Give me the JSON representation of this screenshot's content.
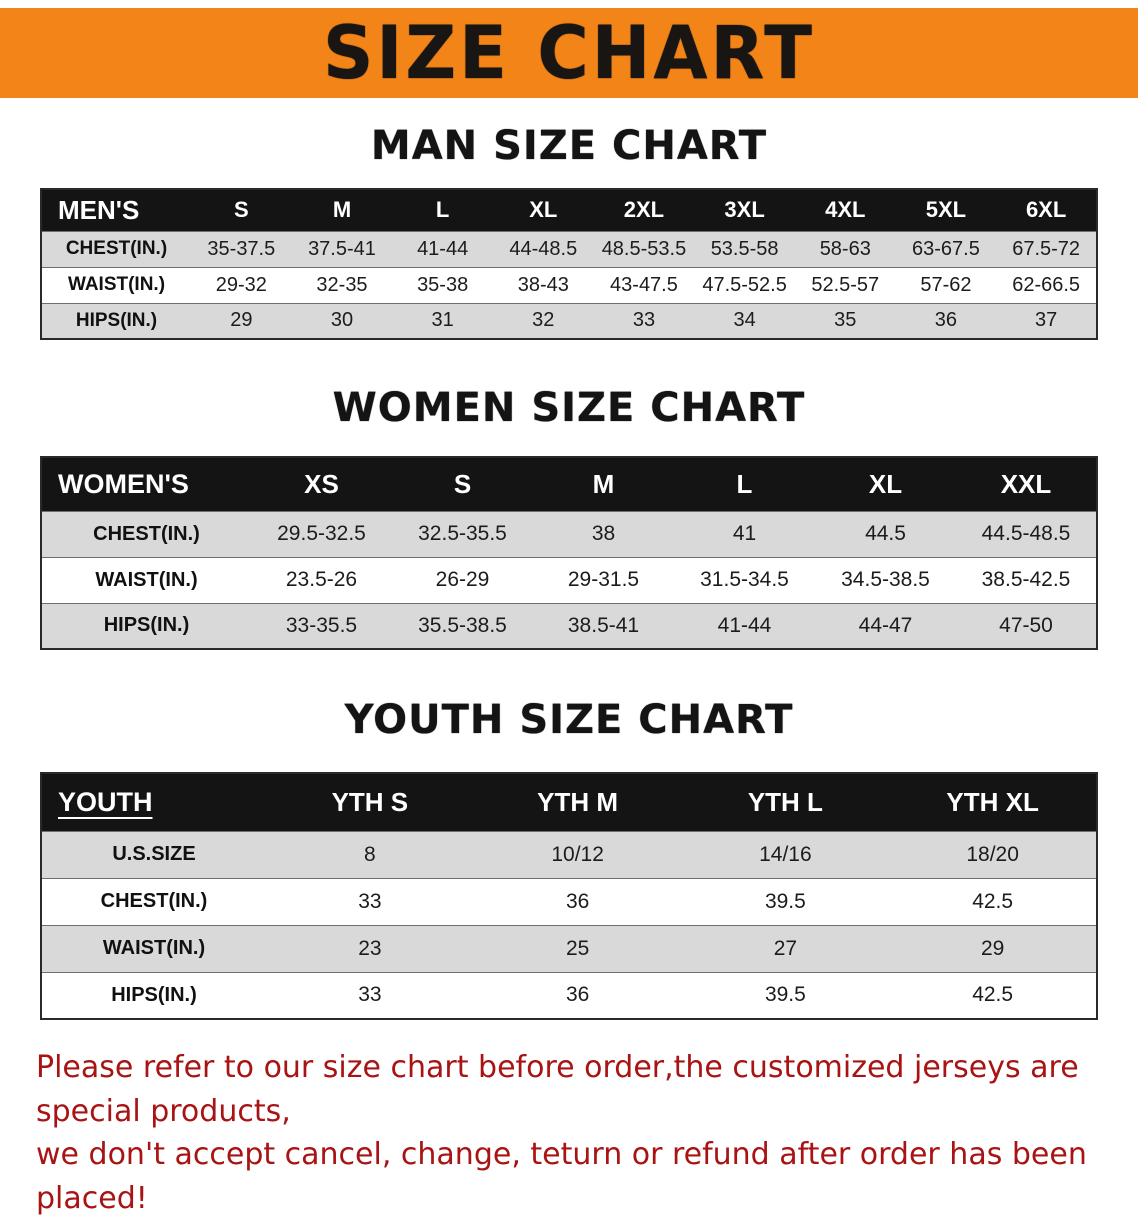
{
  "colors": {
    "banner_orange": "#f28418",
    "table_header_black": "#141414",
    "row_shade_gray": "#d9d9d9",
    "disclaimer_red": "#a81414"
  },
  "banner": {
    "title": "SIZE CHART"
  },
  "sections": [
    {
      "heading": "MAN SIZE CHART",
      "table": {
        "header": [
          "MEN'S",
          "S",
          "M",
          "L",
          "XL",
          "2XL",
          "3XL",
          "4XL",
          "5XL",
          "6XL"
        ],
        "rows": [
          [
            "CHEST(IN.)",
            "35-37.5",
            "37.5-41",
            "41-44",
            "44-48.5",
            "48.5-53.5",
            "53.5-58",
            "58-63",
            "63-67.5",
            "67.5-72"
          ],
          [
            "WAIST(IN.)",
            "29-32",
            "32-35",
            "35-38",
            "38-43",
            "43-47.5",
            "47.5-52.5",
            "52.5-57",
            "57-62",
            "62-66.5"
          ],
          [
            "HIPS(IN.)",
            "29",
            "30",
            "31",
            "32",
            "33",
            "34",
            "35",
            "36",
            "37"
          ]
        ]
      }
    },
    {
      "heading": "WOMEN SIZE CHART",
      "table": {
        "header": [
          "WOMEN'S",
          "XS",
          "S",
          "M",
          "L",
          "XL",
          "XXL"
        ],
        "rows": [
          [
            "CHEST(IN.)",
            "29.5-32.5",
            "32.5-35.5",
            "38",
            "41",
            "44.5",
            "44.5-48.5"
          ],
          [
            "WAIST(IN.)",
            "23.5-26",
            "26-29",
            "29-31.5",
            "31.5-34.5",
            "34.5-38.5",
            "38.5-42.5"
          ],
          [
            "HIPS(IN.)",
            "33-35.5",
            "35.5-38.5",
            "38.5-41",
            "41-44",
            "44-47",
            "47-50"
          ]
        ]
      }
    },
    {
      "heading": "YOUTH SIZE CHART",
      "table": {
        "header": [
          "YOUTH",
          "YTH S",
          "YTH M",
          "YTH L",
          "YTH XL"
        ],
        "rows": [
          [
            "U.S.SIZE",
            "8",
            "10/12",
            "14/16",
            "18/20"
          ],
          [
            "CHEST(IN.)",
            "33",
            "36",
            "39.5",
            "42.5"
          ],
          [
            "WAIST(IN.)",
            "23",
            "25",
            "27",
            "29"
          ],
          [
            "HIPS(IN.)",
            "33",
            "36",
            "39.5",
            "42.5"
          ]
        ]
      }
    }
  ],
  "disclaimer": {
    "line1": "Please refer to our size chart before order,the customized jerseys are special products,",
    "line2": "we don't accept cancel, change, teturn or refund after order has been placed!"
  }
}
